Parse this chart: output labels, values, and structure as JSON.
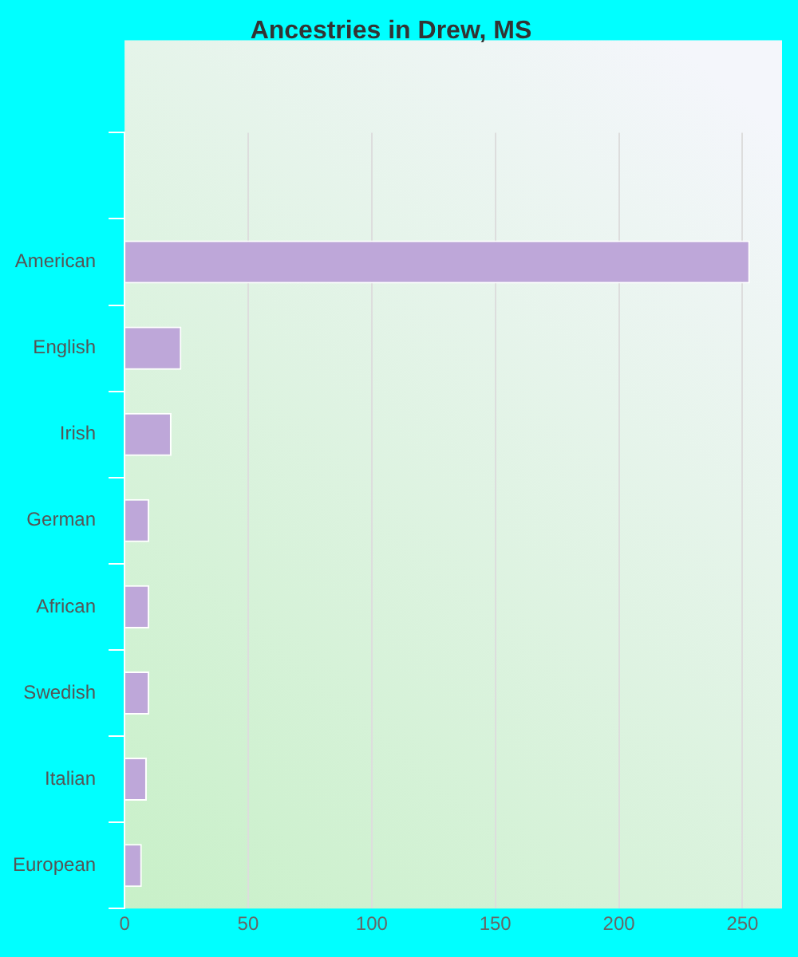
{
  "chart_data": {
    "type": "bar",
    "orientation": "horizontal",
    "title": "Ancestries in Drew, MS",
    "categories": [
      null,
      "American",
      "English",
      "Irish",
      "German",
      "African",
      "Swedish",
      "Italian",
      "European"
    ],
    "values": [
      null,
      253,
      23,
      19,
      10,
      10,
      10,
      9,
      7
    ],
    "color": "#bea7d9",
    "xlim": [
      0,
      266
    ],
    "xticks": [
      0,
      50,
      100,
      150,
      200,
      250
    ],
    "grid": "x",
    "legend": false
  }
}
